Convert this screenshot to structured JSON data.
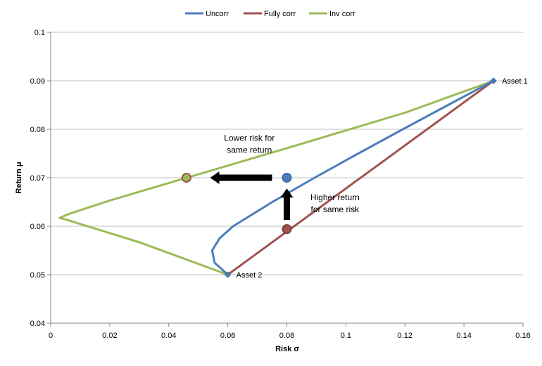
{
  "chart_data": {
    "type": "line",
    "title": "",
    "xlabel": "Risk σ",
    "ylabel": "Return μ",
    "xlim": [
      0,
      0.16
    ],
    "ylim": [
      0.04,
      0.1
    ],
    "x_ticks": [
      "0",
      "0.02",
      "0.04",
      "0.06",
      "0.08",
      "0.1",
      "0.12",
      "0.14",
      "0.16"
    ],
    "y_ticks": [
      "0.04",
      "0.05",
      "0.06",
      "0.07",
      "0.08",
      "0.09",
      "0.1"
    ],
    "grid": "horizontal",
    "legend_position": "top-center",
    "series": [
      {
        "name": "Uncorr",
        "color": "#4a7ebb",
        "points": [
          [
            0.15,
            0.09
          ],
          [
            0.1346,
            0.085
          ],
          [
            0.1193,
            0.08
          ],
          [
            0.1042,
            0.075
          ],
          [
            0.0894,
            0.07
          ],
          [
            0.0751,
            0.065
          ],
          [
            0.0618,
            0.06
          ],
          [
            0.0572,
            0.0575
          ],
          [
            0.0547,
            0.055
          ],
          [
            0.0555,
            0.0525
          ],
          [
            0.06,
            0.05
          ]
        ]
      },
      {
        "name": "Fully corr",
        "color": "#a0534f",
        "points": [
          [
            0.06,
            0.05
          ],
          [
            0.15,
            0.09
          ]
        ]
      },
      {
        "name": "Inv corr",
        "color": "#9bbb59",
        "points": [
          [
            0.06,
            0.05
          ],
          [
            0.03,
            0.0567
          ],
          [
            0.005,
            0.0614
          ],
          [
            0.003,
            0.0617
          ],
          [
            0.006,
            0.0625
          ],
          [
            0.02,
            0.0653
          ],
          [
            0.04,
            0.0689
          ],
          [
            0.08,
            0.0761
          ],
          [
            0.12,
            0.0834
          ],
          [
            0.15,
            0.09
          ]
        ]
      }
    ],
    "markers": [
      {
        "x": 0.046,
        "y": 0.07,
        "fill": "#9bbb59",
        "stroke": "#a0534f"
      },
      {
        "x": 0.08,
        "y": 0.07,
        "fill": "#4a7ebb",
        "stroke": "#3b6aa0"
      },
      {
        "x": 0.08,
        "y": 0.0594,
        "fill": "#a0534f",
        "stroke": "#7d3f3c"
      }
    ],
    "point_labels": [
      {
        "text": "Asset 1",
        "x": 0.15,
        "y": 0.09
      },
      {
        "text": "Asset 2",
        "x": 0.06,
        "y": 0.05
      }
    ],
    "annotations": [
      {
        "lines": [
          "Lower risk for",
          "same return"
        ],
        "x": 0.0673,
        "y": 0.077
      },
      {
        "lines": [
          "Higher return",
          "for same risk"
        ],
        "x": 0.0963,
        "y": 0.0648
      }
    ],
    "arrows": [
      {
        "from": [
          0.075,
          0.07
        ],
        "to": [
          0.054,
          0.07
        ]
      },
      {
        "from": [
          0.08,
          0.0613
        ],
        "to": [
          0.08,
          0.0678
        ]
      }
    ]
  }
}
